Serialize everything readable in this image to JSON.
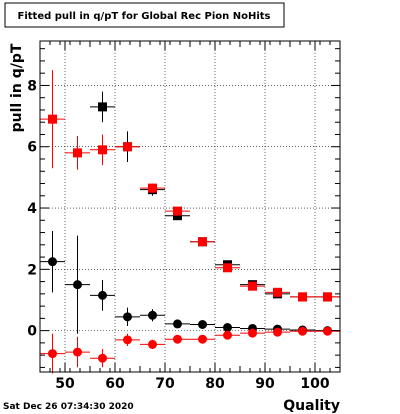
{
  "chart_data": {
    "type": "scatter",
    "title": "Fitted pull in q/pT for Global Rec Pion NoHits",
    "xlabel": "Quality",
    "ylabel": "pull in q/pT",
    "xlim": [
      45,
      105
    ],
    "ylim": [
      -1.35,
      9.45
    ],
    "x_ticks": [
      50,
      60,
      70,
      80,
      90,
      100
    ],
    "y_ticks": [
      0,
      2,
      4,
      6,
      8
    ],
    "grid": true,
    "x_bin_halfwidth": 2.5,
    "series": [
      {
        "marker": "square",
        "color": "#000000",
        "x": [
          57.5,
          62.5,
          67.5,
          72.5,
          77.5,
          82.5,
          87.5,
          92.5,
          97.5,
          102.5
        ],
        "y": [
          7.3,
          6.0,
          4.6,
          3.75,
          2.9,
          2.15,
          1.5,
          1.2,
          1.1,
          1.1
        ],
        "yerr": [
          0.5,
          0.5,
          0.2,
          0.1,
          0.1,
          0.1,
          0.1,
          0.1,
          0.05,
          0.05
        ]
      },
      {
        "marker": "square",
        "color": "#ff0000",
        "x": [
          47.5,
          52.5,
          57.5,
          62.5,
          67.5,
          72.5,
          77.5,
          82.5,
          87.5,
          92.5,
          97.5,
          102.5
        ],
        "y": [
          6.9,
          5.8,
          5.9,
          6.0,
          4.65,
          3.9,
          2.9,
          2.05,
          1.45,
          1.25,
          1.1,
          1.1
        ],
        "yerr": [
          1.6,
          0.55,
          0.5,
          0.15,
          0.15,
          0.1,
          0.1,
          0.1,
          0.05,
          0.05,
          0.05,
          0.05
        ]
      },
      {
        "marker": "circle",
        "color": "#000000",
        "x": [
          47.5,
          52.5,
          57.5,
          62.5,
          67.5,
          72.5,
          77.5,
          82.5,
          87.5,
          92.5,
          97.5,
          102.5
        ],
        "y": [
          2.25,
          1.5,
          1.15,
          0.45,
          0.5,
          0.22,
          0.2,
          0.1,
          0.07,
          0.05,
          0.02,
          0.0
        ],
        "yerr": [
          1.0,
          1.6,
          0.5,
          0.3,
          0.2,
          0.07,
          0.05,
          0.05,
          0.03,
          0.03,
          0.02,
          0.02
        ]
      },
      {
        "marker": "circle",
        "color": "#ff0000",
        "x": [
          47.5,
          52.5,
          57.5,
          62.5,
          67.5,
          72.5,
          77.5,
          82.5,
          87.5,
          92.5,
          97.5,
          102.5
        ],
        "y": [
          -0.75,
          -0.7,
          -0.9,
          -0.3,
          -0.45,
          -0.28,
          -0.28,
          -0.15,
          -0.08,
          -0.05,
          -0.02,
          -0.02
        ],
        "yerr": [
          0.65,
          0.5,
          0.3,
          0.2,
          0.15,
          0.05,
          0.05,
          0.05,
          0.05,
          0.03,
          0.02,
          0.02
        ]
      }
    ]
  },
  "footer": {
    "timestamp": "Sat Dec 26 07:34:30 2020"
  }
}
